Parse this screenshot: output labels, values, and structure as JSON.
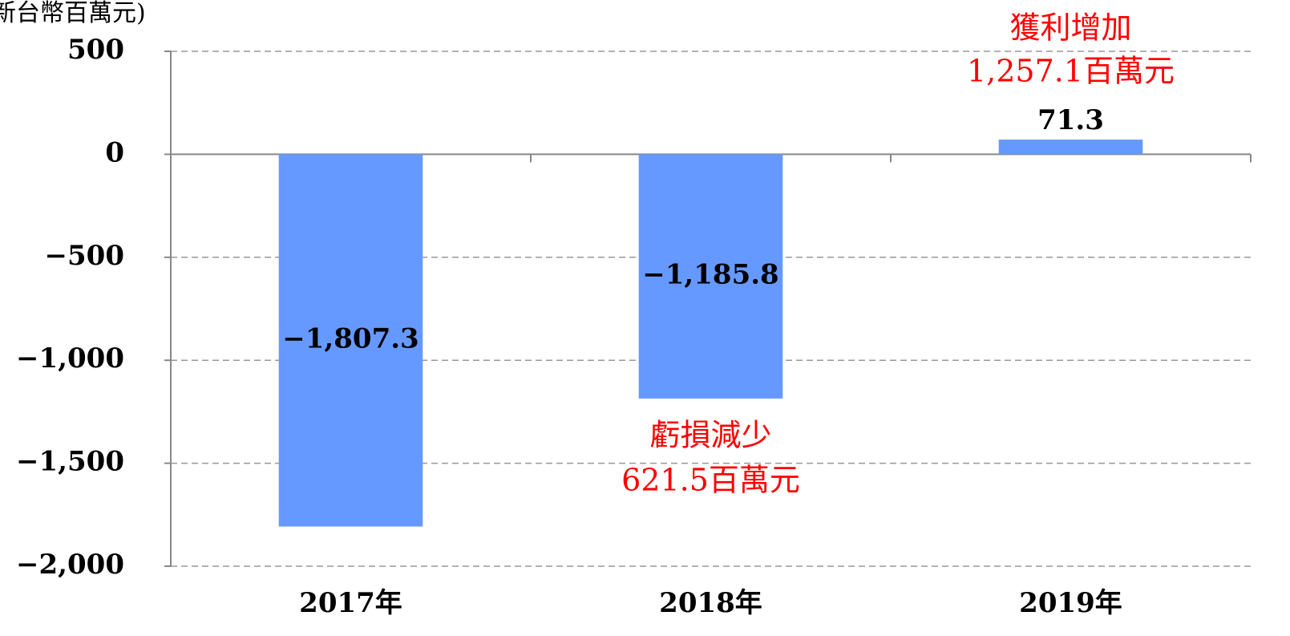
{
  "chart_data": {
    "type": "bar",
    "unit_label": "新台幣百萬元)",
    "categories": [
      "2017年",
      "2018年",
      "2019年"
    ],
    "values": [
      -1807.3,
      -1185.8,
      71.3
    ],
    "value_labels": [
      "−1,807.3",
      "−1,185.8",
      "71.3"
    ],
    "color": "#6699ff",
    "ylim": [
      -2000,
      500
    ],
    "yticks": [
      500,
      0,
      {
        "value": -500,
        "label": "−500"
      },
      {
        "value": -1000,
        "label": "−1,000"
      },
      {
        "value": -1500,
        "label": "−1,500"
      },
      {
        "value": -2000,
        "label": "−2,000"
      }
    ],
    "grid": true,
    "annotations": [
      "獲利增加",
      "1,257.1百萬元",
      "虧損減少",
      "621.5百萬元"
    ],
    "annotation_color": "#ff0000"
  }
}
